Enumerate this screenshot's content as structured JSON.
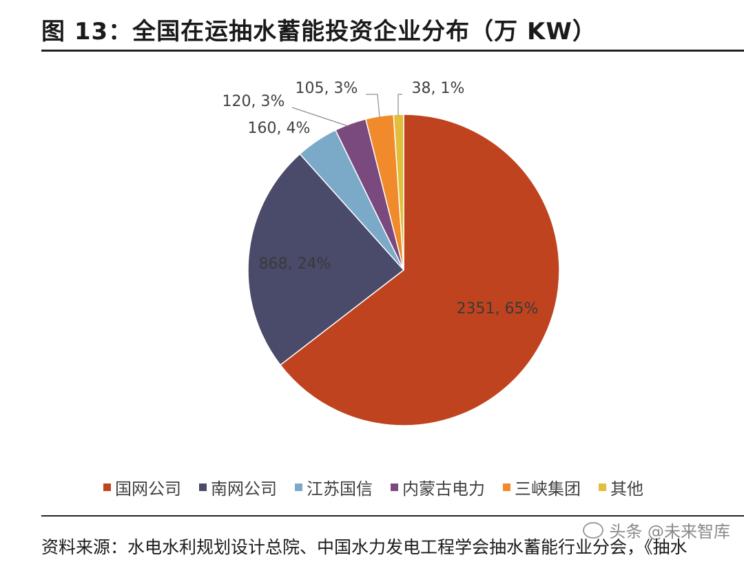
{
  "header": {
    "title": "图 13：全国在运抽水蓄能投资企业分布（万 KW）"
  },
  "chart_data": {
    "type": "pie",
    "title": "",
    "slices": [
      {
        "name": "国网公司",
        "value": 2351,
        "percent": "65%",
        "label": "2351, 65%",
        "color": "#C0431F"
      },
      {
        "name": "南网公司",
        "value": 868,
        "percent": "24%",
        "label": "868, 24%",
        "color": "#4A4A6A"
      },
      {
        "name": "江苏国信",
        "value": 160,
        "percent": "4%",
        "label": "160, 4%",
        "color": "#7BAAC8"
      },
      {
        "name": "内蒙古电力",
        "value": 120,
        "percent": "3%",
        "label": "120, 3%",
        "color": "#7A4A7E"
      },
      {
        "name": "三峡集团",
        "value": 105,
        "percent": "3%",
        "label": "105, 3%",
        "color": "#F08A2A"
      },
      {
        "name": "其他",
        "value": 38,
        "percent": "1%",
        "label": "38, 1%",
        "color": "#E2BE3C"
      }
    ],
    "legend_position": "bottom"
  },
  "footer": {
    "source": "资料来源：水电水利规划设计总院、中国水力发电工程学会抽水蓄能行业分会，《抽水",
    "watermark": "头条 @未来智库"
  }
}
